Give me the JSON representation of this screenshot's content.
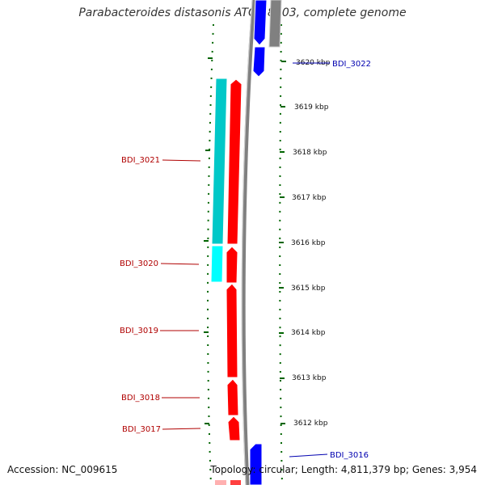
{
  "title": "Parabacteroides distasonis ATCC 8503, complete genome",
  "footer": {
    "accession": "Accession: NC_009615",
    "summary": "Topology: circular; Length: 4,811,379 bp; Genes: 3,954"
  },
  "colors": {
    "forward_cds": "#ff0000",
    "reverse_cds": "#0000ff",
    "rna_forward": "#00e0e0",
    "rna_reverse": "#808080",
    "backbone": "#808080",
    "ticks": "#006400",
    "label_forward": "#b00000",
    "label_reverse": "#0000b0"
  },
  "scale": {
    "unit": "kbp",
    "ticks": [
      "3620 kbp",
      "3619 kbp",
      "3618 kbp",
      "3617 kbp",
      "3616 kbp",
      "3615 kbp",
      "3614 kbp",
      "3613 kbp",
      "3612 kbp"
    ]
  },
  "gene_labels": [
    {
      "label": "BDI_3022",
      "strand": "reverse"
    },
    {
      "label": "BDI_3021",
      "strand": "forward"
    },
    {
      "label": "BDI_3020",
      "strand": "forward"
    },
    {
      "label": "BDI_3019",
      "strand": "forward"
    },
    {
      "label": "BDI_3018",
      "strand": "forward"
    },
    {
      "label": "BDI_3017",
      "strand": "forward"
    },
    {
      "label": "BDI_3016",
      "strand": "reverse"
    }
  ]
}
